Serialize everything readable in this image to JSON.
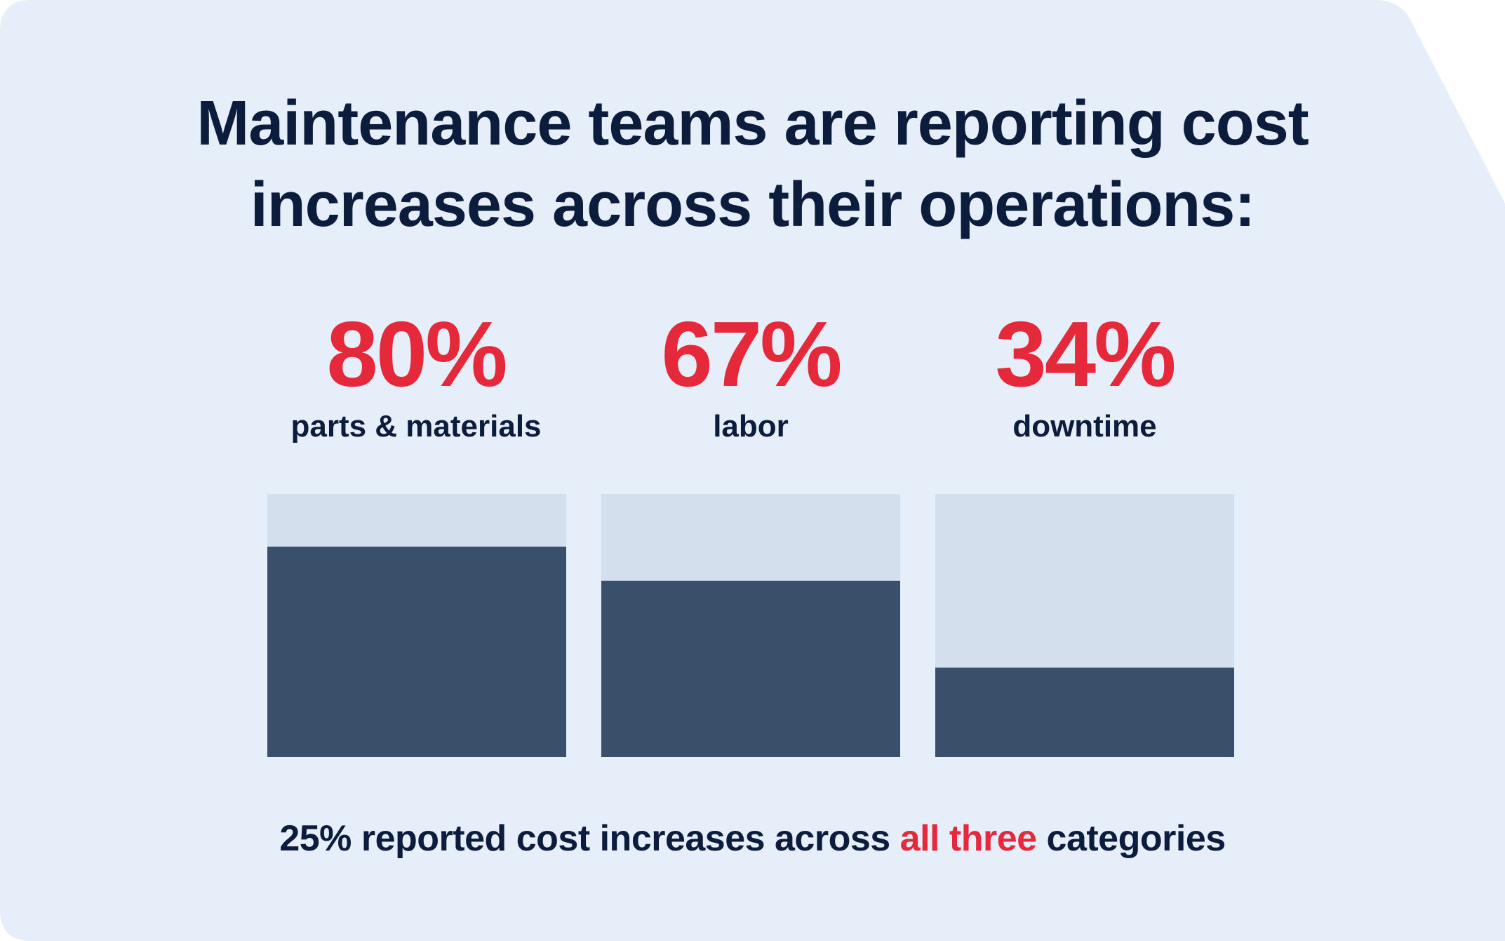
{
  "title": {
    "line1": "Maintenance teams are reporting cost",
    "line2": "increases across their operations:"
  },
  "stats": [
    {
      "value": "80%",
      "label": "parts & materials"
    },
    {
      "value": "67%",
      "label": "labor"
    },
    {
      "value": "34%",
      "label": "downtime"
    }
  ],
  "footer": {
    "before": "25% reported cost increases across ",
    "highlight": "all three",
    "after": " categories"
  },
  "colors": {
    "background": "#e5eef9",
    "title": "#0c1c3c",
    "accent": "#e5283a",
    "bar_fill": "#3a4f69",
    "bar_track": "#d3dfec"
  },
  "chart_data": {
    "type": "bar",
    "title": "Maintenance teams are reporting cost increases across their operations:",
    "categories": [
      "parts & materials",
      "labor",
      "downtime"
    ],
    "values": [
      80,
      67,
      34
    ],
    "unit": "%",
    "ylim": [
      0,
      100
    ],
    "xlabel": "",
    "ylabel": "",
    "grid": false,
    "legend": "none",
    "annotation": "25% reported cost increases across all three categories"
  }
}
